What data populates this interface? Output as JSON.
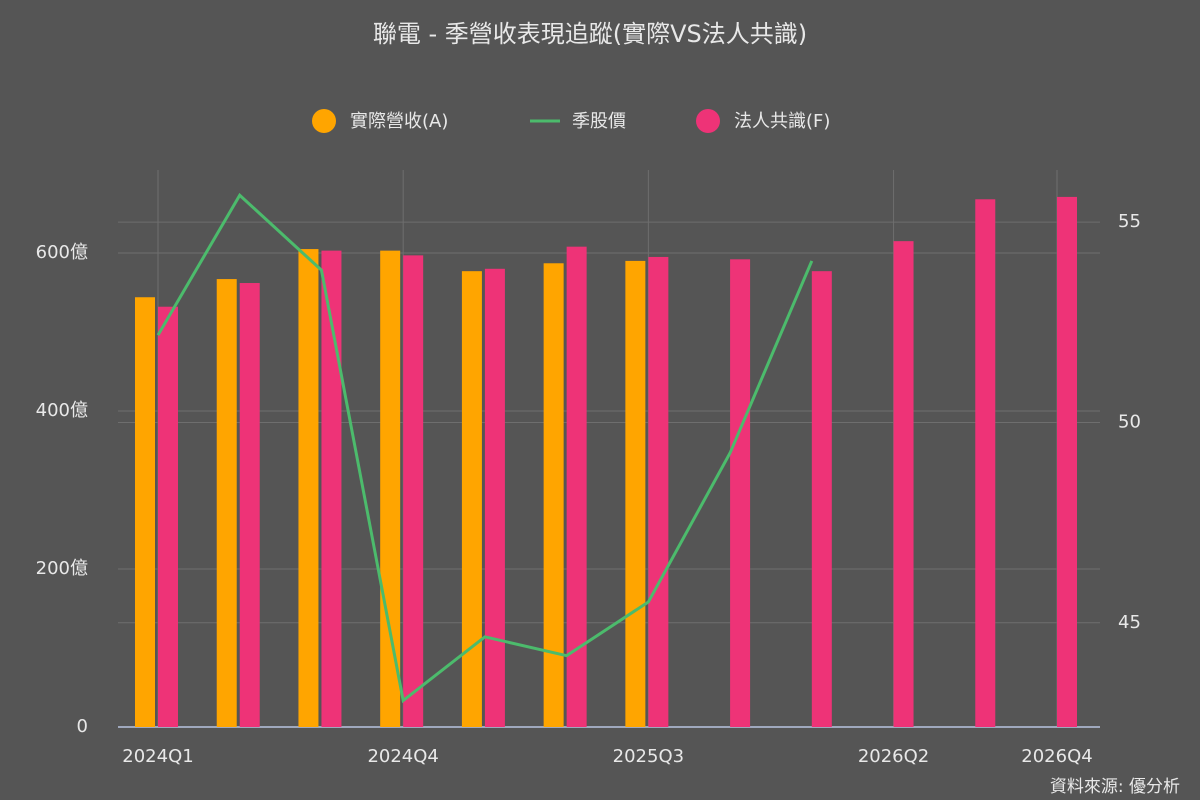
{
  "chart_data": {
    "type": "bar-line",
    "title": "聯電 - 季營收表現追蹤(實際VS法人共識)",
    "source": "資料來源: 優分析",
    "categories": [
      "2024Q1",
      null,
      null,
      "2024Q4",
      null,
      null,
      "2025Q3",
      null,
      null,
      "2026Q2",
      null,
      "2026Q4"
    ],
    "series": [
      {
        "name": "實際營收(A)",
        "color": "#ffa500",
        "kind": "bar",
        "values": [
          544,
          567,
          605,
          603,
          577,
          587,
          590,
          null,
          null,
          null,
          null,
          null
        ]
      },
      {
        "name": "季股價",
        "color": "#4cbb6c",
        "kind": "line",
        "axis": "y2",
        "values": [
          52.18,
          55.67,
          53.8,
          43.06,
          44.65,
          44.18,
          45.52,
          49.24,
          54.03,
          null,
          null,
          null
        ]
      },
      {
        "name": "法人共識(F)",
        "color": "#ee3377",
        "kind": "bar",
        "values": [
          532,
          562,
          603,
          597,
          580,
          608,
          595,
          592,
          577,
          615,
          668,
          671
        ]
      }
    ],
    "ylim": [
      0,
      700
    ],
    "yticks": [
      0,
      {
        "value": 200,
        "label": "200億"
      },
      {
        "value": 400,
        "label": "400億"
      },
      {
        "value": 600,
        "label": "600億"
      }
    ],
    "y2lim": [
      42.4,
      56.2
    ],
    "y2ticks": [
      45,
      50,
      55
    ],
    "grid": true
  }
}
